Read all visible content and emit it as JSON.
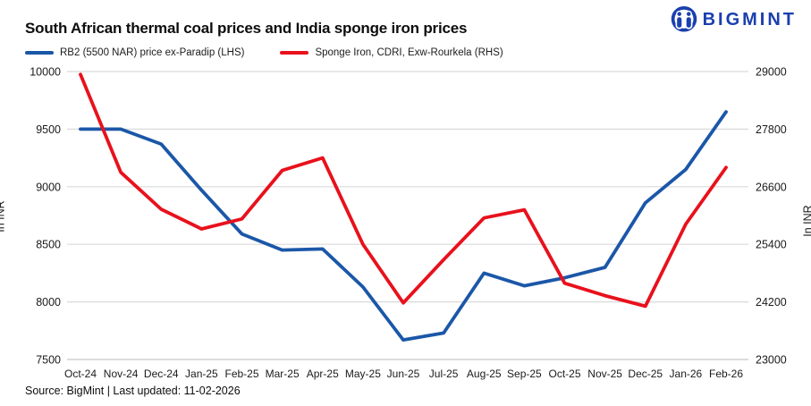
{
  "title": "South African thermal coal prices and India sponge iron prices",
  "logo": {
    "text": "BIGMINT",
    "color": "#1a3fae"
  },
  "footer": {
    "text": "Source: BigMint | Last updated: 11-02-2026"
  },
  "chart_data": {
    "type": "line",
    "categories": [
      "Oct-24",
      "Nov-24",
      "Dec-24",
      "Jan-25",
      "Feb-25",
      "Mar-25",
      "Apr-25",
      "May-25",
      "Jun-25",
      "Jul-25",
      "Aug-25",
      "Sep-25",
      "Oct-25",
      "Nov-25",
      "Dec-25",
      "Jan-26",
      "Feb-26"
    ],
    "series": [
      {
        "name": "RB2 (5500 NAR) price ex-Paradip (LHS)",
        "axis": "left",
        "color": "#1b57a8",
        "values": [
          9500,
          9500,
          9370,
          8970,
          8590,
          8450,
          8460,
          8130,
          7670,
          7730,
          8250,
          8140,
          8210,
          8300,
          8860,
          9150,
          9650
        ]
      },
      {
        "name": "Sponge Iron, CDRI, Exw-Rourkela (RHS)",
        "axis": "right",
        "color": "#e8111c",
        "values": [
          28940,
          26900,
          26130,
          25720,
          25930,
          26940,
          27200,
          25400,
          24180,
          25080,
          25950,
          26120,
          24590,
          24330,
          24110,
          25820,
          27000
        ]
      }
    ],
    "left_axis": {
      "label": "In INR",
      "min": 7500,
      "max": 10000,
      "ticks": [
        10000,
        9500,
        9000,
        8500,
        8000,
        7500
      ]
    },
    "right_axis": {
      "label": "In INR",
      "min": 23000,
      "max": 29000,
      "ticks": [
        29000,
        27800,
        26600,
        25400,
        24200,
        23000
      ]
    },
    "grid": true,
    "grid_color": "#dadada",
    "baseline_color": "#c6c6c6",
    "legend_position": "top-left"
  }
}
